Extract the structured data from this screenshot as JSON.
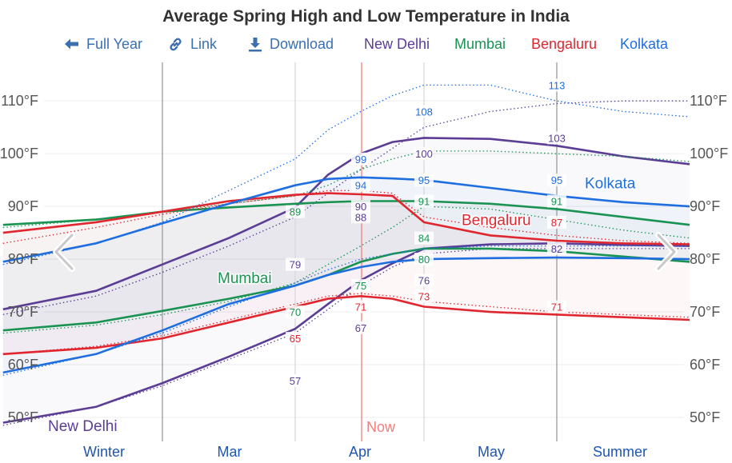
{
  "title": "Average Spring High and Low Temperature in India",
  "toolbar": {
    "full_year": "Full Year",
    "link": "Link",
    "download": "Download"
  },
  "colors": {
    "new_delhi": "#5b3d96",
    "mumbai": "#1a9352",
    "bengaluru": "#e0262e",
    "kolkata": "#1e6ee0",
    "toolbar": "#3a6fb0",
    "now_line": "#f07f7f",
    "axis_text": "#555555"
  },
  "chart_data": {
    "type": "line",
    "title": "Average Spring High and Low Temperature in India",
    "x_positions": [
      "Winter",
      "Mar",
      "Apr",
      "May",
      "Summer"
    ],
    "x_ticks": [
      "Winter",
      "Mar",
      "Apr",
      "May",
      "Summer"
    ],
    "y_ticks": [
      "50°F",
      "60°F",
      "70°F",
      "80°F",
      "90°F",
      "100°F",
      "110°F"
    ],
    "ylim": [
      45,
      117
    ],
    "now_label": "Now",
    "legend": [
      "New Delhi",
      "Mumbai",
      "Bengaluru",
      "Kolkata"
    ],
    "x_sample": [
      -1.2,
      -0.5,
      0,
      0.5,
      1,
      1.5,
      2,
      2.5,
      3,
      3.5,
      4,
      4.5,
      5
    ],
    "series": [
      {
        "name": "New Delhi",
        "color_key": "new_delhi",
        "high": [
          70.5,
          74,
          79,
          84,
          89.8,
          96,
          100,
          102.2,
          103,
          102.8,
          101.5,
          99.5,
          98
        ],
        "low": [
          49,
          52,
          56.5,
          61.5,
          66.8,
          71.5,
          76,
          79.2,
          82,
          82.8,
          83,
          82.7,
          82.5
        ],
        "high_norm": [
          69.5,
          73,
          77.5,
          82.5,
          88,
          92.5,
          97,
          101,
          105,
          108,
          109.5,
          110,
          110
        ],
        "low_norm": [
          48.5,
          52,
          56,
          61,
          66,
          70.5,
          75,
          78.5,
          81,
          82,
          82,
          82,
          82
        ],
        "label": "New Delhi",
        "label_value": "Winter",
        "label_temp": 48.5,
        "annotations": [
          {
            "x": "Mar",
            "temp": 79
          },
          {
            "x": "Mar",
            "temp": 57
          },
          {
            "x": "Apr",
            "temp": 90
          },
          {
            "x": "Apr",
            "temp": 88
          },
          {
            "x": "Apr",
            "temp": 67
          },
          {
            "x": "May",
            "temp": 100
          },
          {
            "x": "May",
            "temp": 76
          },
          {
            "x": "Summer",
            "temp": 103
          },
          {
            "x": "Summer",
            "temp": 82
          }
        ]
      },
      {
        "name": "Mumbai",
        "color_key": "mumbai",
        "high": [
          86.5,
          87.5,
          89,
          89.8,
          90.5,
          90.8,
          91,
          91,
          91,
          90.5,
          89.5,
          88,
          86.5
        ],
        "low": [
          66.5,
          68,
          70.2,
          72.5,
          75,
          77,
          79.5,
          81,
          82,
          82,
          81.5,
          80.5,
          79.5
        ],
        "high_norm": [
          86,
          87.5,
          89,
          90.5,
          92,
          94,
          97,
          99,
          100.5,
          100.5,
          100,
          99.5,
          98.5
        ],
        "low_norm": [
          66,
          67.5,
          69.5,
          72,
          75.5,
          79,
          82.5,
          86,
          90,
          89.5,
          87.5,
          85.5,
          84
        ],
        "label": "Mumbai",
        "label_value": "Mar",
        "label_temp": 76.5,
        "annotations": [
          {
            "x": "Mar",
            "temp": 89
          },
          {
            "x": "Mar",
            "temp": 70
          },
          {
            "x": "Apr",
            "temp": 75
          },
          {
            "x": "May",
            "temp": 91
          },
          {
            "x": "May",
            "temp": 84
          },
          {
            "x": "May",
            "temp": 80
          },
          {
            "x": "Summer",
            "temp": 91
          }
        ]
      },
      {
        "name": "Bengaluru",
        "color_key": "bengaluru",
        "high": [
          85,
          87,
          89,
          91,
          92.2,
          92.5,
          92.3,
          92,
          87,
          84.5,
          83.5,
          83,
          82.8
        ],
        "low": [
          62,
          63.2,
          65,
          68,
          71,
          72.5,
          73,
          72.5,
          71,
          70,
          69.5,
          69,
          68.5
        ],
        "high_norm": [
          83,
          86,
          88.5,
          90.5,
          92,
          93,
          93,
          92.5,
          88,
          86,
          84.5,
          83.5,
          83
        ],
        "low_norm": [
          62,
          63.5,
          65.5,
          68.5,
          71.5,
          73,
          73.5,
          73,
          72,
          71,
          70,
          69.5,
          69
        ],
        "label": "Bengaluru",
        "label_value": "Apr",
        "label_temp": 87.5,
        "annotations": [
          {
            "x": "Mar",
            "temp": 65
          },
          {
            "x": "Apr",
            "temp": 71
          },
          {
            "x": "May",
            "temp": 73
          },
          {
            "x": "Summer",
            "temp": 87
          },
          {
            "x": "Summer",
            "temp": 71
          }
        ]
      },
      {
        "name": "Kolkata",
        "color_key": "kolkata",
        "high": [
          79.5,
          83,
          86.8,
          90.5,
          94,
          95.2,
          95.5,
          95.3,
          95,
          93.5,
          92,
          90.8,
          90
        ],
        "low": [
          58.5,
          62,
          66.5,
          71.5,
          75,
          77,
          78.5,
          79.5,
          80,
          80.2,
          80.3,
          80.2,
          80
        ],
        "high_norm": [
          79,
          83,
          87,
          93,
          99,
          104.5,
          108,
          111,
          113,
          113,
          110,
          108,
          107
        ],
        "low_norm": [
          58,
          62,
          66,
          71,
          75.5,
          78,
          80,
          81,
          82,
          82.5,
          82.5,
          82.5,
          82.5
        ],
        "label": "Kolkata",
        "label_value": "Summer",
        "label_temp": 94.5,
        "annotations": [
          {
            "x": "Apr",
            "temp": 99
          },
          {
            "x": "Apr",
            "temp": 94
          },
          {
            "x": "May",
            "temp": 108
          },
          {
            "x": "May",
            "temp": 95
          },
          {
            "x": "Summer",
            "temp": 113
          },
          {
            "x": "Summer",
            "temp": 95
          }
        ]
      }
    ]
  }
}
